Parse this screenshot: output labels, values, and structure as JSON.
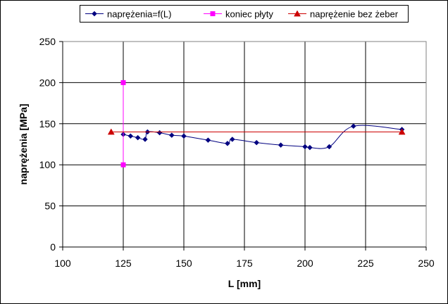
{
  "chart_data": {
    "type": "line",
    "title": "",
    "xlabel": "L [mm]",
    "ylabel": "naprężenia [MPa]",
    "xlim": [
      100,
      250
    ],
    "ylim": [
      0,
      250
    ],
    "x_ticks": [
      100,
      125,
      150,
      175,
      200,
      225,
      250
    ],
    "y_ticks": [
      0,
      50,
      100,
      150,
      200,
      250
    ],
    "grid": true,
    "legend_position": "top",
    "series": [
      {
        "name": "naprężenia=f(L)",
        "color": "#000080",
        "marker": "diamond",
        "smooth": true,
        "points": [
          [
            125,
            137
          ],
          [
            128,
            135
          ],
          [
            131,
            133
          ],
          [
            134,
            131
          ],
          [
            135,
            140
          ],
          [
            140,
            139
          ],
          [
            145,
            136
          ],
          [
            150,
            135
          ],
          [
            160,
            130
          ],
          [
            168,
            126
          ],
          [
            170,
            131
          ],
          [
            180,
            127
          ],
          [
            190,
            124
          ],
          [
            200,
            122
          ],
          [
            202,
            121
          ],
          [
            210,
            122
          ],
          [
            220,
            147
          ],
          [
            240,
            143
          ]
        ]
      },
      {
        "name": "koniec płyty",
        "color": "#ff00ff",
        "marker": "square",
        "smooth": false,
        "points": [
          [
            125,
            200
          ],
          [
            125,
            100
          ]
        ]
      },
      {
        "name": "naprężenie bez żeber",
        "color": "#cc0000",
        "marker": "triangle",
        "smooth": false,
        "points": [
          [
            120,
            140
          ],
          [
            240,
            140
          ]
        ]
      }
    ]
  }
}
